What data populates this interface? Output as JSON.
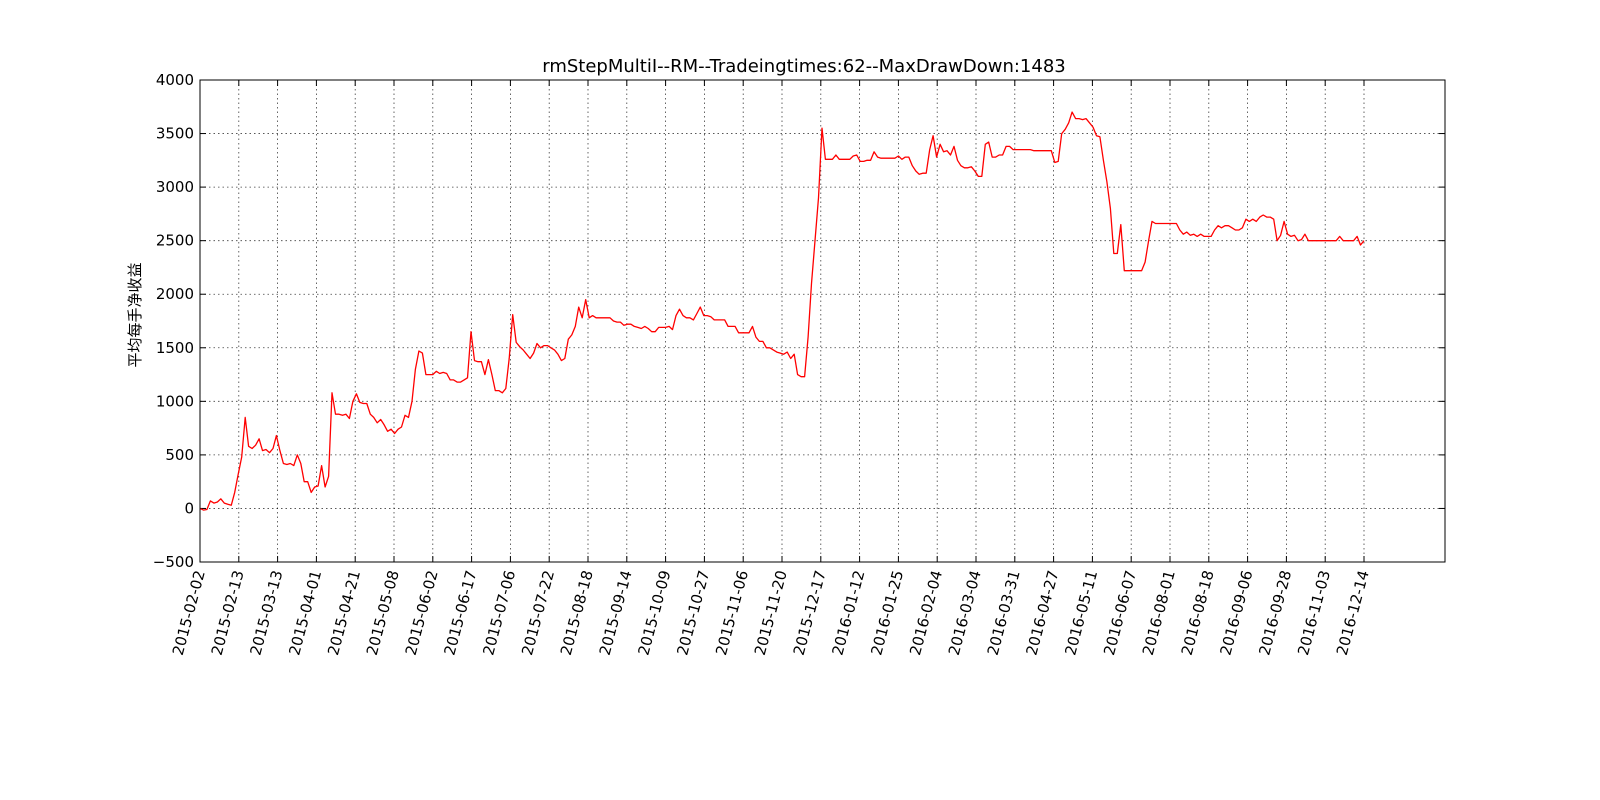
{
  "chart_data": {
    "type": "line",
    "title": "rmStepMultiI--RM--Tradeingtimes:62--MaxDrawDown:1483",
    "xlabel": "",
    "ylabel": "平均每手净收益",
    "ylim": [
      -500,
      4000
    ],
    "y_ticks": [
      -500,
      0,
      500,
      1000,
      1500,
      2000,
      2500,
      3000,
      3500,
      4000
    ],
    "y_tick_labels": [
      "−500",
      "0",
      "500",
      "1000",
      "1500",
      "2000",
      "2500",
      "3000",
      "3500",
      "4000"
    ],
    "x_tick_labels": [
      "2015-02-02",
      "2015-02-13",
      "2015-03-13",
      "2015-04-01",
      "2015-04-21",
      "2015-05-08",
      "2015-06-02",
      "2015-06-17",
      "2015-07-06",
      "2015-07-22",
      "2015-08-18",
      "2015-09-14",
      "2015-10-09",
      "2015-10-27",
      "2015-11-06",
      "2015-11-20",
      "2015-12-17",
      "2016-01-12",
      "2016-01-25",
      "2016-02-04",
      "2016-03-04",
      "2016-03-31",
      "2016-04-27",
      "2016-05-11",
      "2016-06-07",
      "2016-08-01",
      "2016-08-18",
      "2016-09-06",
      "2016-09-28",
      "2016-11-03",
      "2016-12-14"
    ],
    "grid": true,
    "line_color": "#ff0000",
    "series": [
      {
        "values": [
          0,
          -15,
          -10,
          70,
          50,
          60,
          90,
          50,
          40,
          30,
          150,
          320,
          480,
          850,
          580,
          560,
          590,
          650,
          540,
          550,
          520,
          560,
          680,
          540,
          420,
          410,
          420,
          400,
          500,
          420,
          250,
          250,
          150,
          200,
          210,
          400,
          200,
          300,
          1080,
          880,
          880,
          870,
          880,
          840,
          1000,
          1070,
          990,
          980,
          980,
          880,
          850,
          800,
          830,
          780,
          720,
          740,
          700,
          740,
          760,
          870,
          850,
          1000,
          1300,
          1470,
          1450,
          1250,
          1250,
          1250,
          1280,
          1260,
          1270,
          1260,
          1200,
          1200,
          1180,
          1180,
          1200,
          1220,
          1650,
          1380,
          1370,
          1370,
          1250,
          1390,
          1250,
          1100,
          1100,
          1080,
          1120,
          1400,
          1810,
          1550,
          1510,
          1480,
          1440,
          1400,
          1450,
          1540,
          1500,
          1520,
          1520,
          1500,
          1480,
          1440,
          1380,
          1400,
          1580,
          1620,
          1700,
          1880,
          1780,
          1950,
          1780,
          1800,
          1780,
          1780,
          1780,
          1780,
          1780,
          1750,
          1740,
          1740,
          1710,
          1720,
          1720,
          1700,
          1690,
          1680,
          1700,
          1680,
          1650,
          1650,
          1690,
          1690,
          1690,
          1700,
          1670,
          1800,
          1860,
          1800,
          1780,
          1780,
          1760,
          1820,
          1880,
          1800,
          1800,
          1790,
          1760,
          1760,
          1760,
          1760,
          1700,
          1700,
          1700,
          1640,
          1640,
          1640,
          1640,
          1700,
          1600,
          1560,
          1560,
          1500,
          1500,
          1480,
          1460,
          1450,
          1440,
          1460,
          1400,
          1440,
          1250,
          1230,
          1230,
          1600,
          2100,
          2500,
          2900,
          3550,
          3260,
          3260,
          3260,
          3300,
          3260,
          3260,
          3260,
          3260,
          3290,
          3300,
          3240,
          3240,
          3250,
          3250,
          3330,
          3280,
          3270,
          3270,
          3270,
          3270,
          3270,
          3290,
          3260,
          3280,
          3280,
          3200,
          3150,
          3120,
          3130,
          3130,
          3350,
          3480,
          3280,
          3400,
          3330,
          3340,
          3300,
          3380,
          3250,
          3200,
          3180,
          3180,
          3190,
          3150,
          3100,
          3100,
          3400,
          3420,
          3280,
          3280,
          3300,
          3300,
          3380,
          3380,
          3350,
          3350,
          3350,
          3350,
          3350,
          3350,
          3340,
          3340,
          3340,
          3340,
          3340,
          3340,
          3230,
          3240,
          3500,
          3540,
          3600,
          3700,
          3640,
          3640,
          3630,
          3640,
          3600,
          3560,
          3480,
          3470,
          3250,
          3050,
          2800,
          2380,
          2380,
          2650,
          2220,
          2220,
          2220,
          2220,
          2220,
          2220,
          2300,
          2500,
          2680,
          2660,
          2660,
          2660,
          2660,
          2660,
          2660,
          2660,
          2600,
          2560,
          2580,
          2550,
          2560,
          2540,
          2560,
          2540,
          2540,
          2540,
          2600,
          2640,
          2620,
          2640,
          2640,
          2620,
          2600,
          2600,
          2620,
          2700,
          2680,
          2700,
          2680,
          2720,
          2740,
          2720,
          2720,
          2700,
          2500,
          2550,
          2680,
          2560,
          2540,
          2550,
          2500,
          2510,
          2560,
          2500,
          2500,
          2500,
          2500,
          2500,
          2500,
          2500,
          2500,
          2500,
          2540,
          2500,
          2500,
          2500,
          2500,
          2540,
          2460,
          2500
        ]
      }
    ]
  }
}
